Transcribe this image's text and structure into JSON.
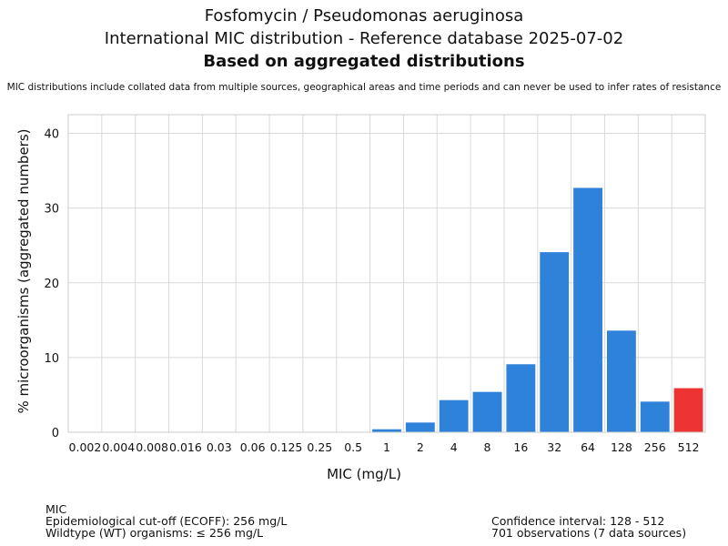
{
  "header": {
    "title_line1": "Fosfomycin / Pseudomonas aeruginosa",
    "title_line2": "International MIC distribution - Reference database 2025-07-02",
    "title_line3": "Based on aggregated distributions",
    "subtitle": "MIC distributions include collated data from multiple sources, geographical areas and time periods and can never be used to infer rates of resistance"
  },
  "chart_data": {
    "type": "bar",
    "xlabel": "MIC (mg/L)",
    "ylabel": "% microorganisms (aggregated numbers)",
    "ylim": [
      0,
      42.5
    ],
    "yticks": [
      0,
      10,
      20,
      30,
      40
    ],
    "grid": true,
    "categories": [
      "0.002",
      "0.004",
      "0.008",
      "0.016",
      "0.03",
      "0.06",
      "0.125",
      "0.25",
      "0.5",
      "1",
      "2",
      "4",
      "8",
      "16",
      "32",
      "64",
      "128",
      "256",
      "512"
    ],
    "values": [
      0,
      0,
      0,
      0,
      0,
      0,
      0,
      0,
      0,
      0.4,
      1.3,
      4.3,
      5.4,
      9.1,
      24.1,
      32.7,
      13.6,
      4.1,
      5.9
    ],
    "bar_color": "#2f82d9",
    "highlight_color": "#ee3333",
    "highlight_categories": [
      "512"
    ]
  },
  "footer": {
    "left_line1": "MIC",
    "left_line2": "Epidemiological cut-off (ECOFF): 256 mg/L",
    "left_line3": "Wildtype (WT) organisms: ≤ 256 mg/L",
    "right_line1": "Confidence interval: 128 - 512",
    "right_line2": "701 observations (7 data sources)"
  }
}
